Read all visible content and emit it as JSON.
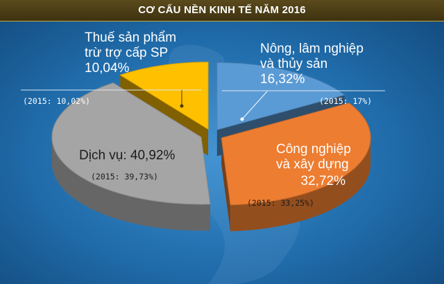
{
  "header": {
    "title": "CƠ CẤU NỀN KINH TẾ NĂM 2016"
  },
  "chart_data": {
    "type": "pie",
    "title": "CƠ CẤU NỀN KINH TẾ NĂM 2016",
    "slices": [
      {
        "key": "nong",
        "name_lines": [
          "Nông, lâm nghiệp",
          "và thủy sản"
        ],
        "value": 16.32,
        "value_text": "16,32%",
        "prev_text": "(2015: 17%)",
        "color": "#5b9bd5"
      },
      {
        "key": "cong",
        "name_lines": [
          "Công nghiệp",
          "và xây dựng"
        ],
        "value": 32.72,
        "value_text": "32,72%",
        "prev_text": "(2015: 33,25%)",
        "color": "#ed7d31"
      },
      {
        "key": "dich",
        "name_lines": [
          "Dịch vụ: 40,92%"
        ],
        "value": 40.92,
        "value_text": "40,92%",
        "prev_text": "(2015: 39,73%)",
        "color": "#a5a5a5"
      },
      {
        "key": "thue",
        "name_lines": [
          "Thuế sản phẩm",
          "trừ trợ cấp SP"
        ],
        "value": 10.04,
        "value_text": "10,04%",
        "prev_text": "(2015: 10,02%)",
        "color": "#ffc000"
      }
    ]
  }
}
